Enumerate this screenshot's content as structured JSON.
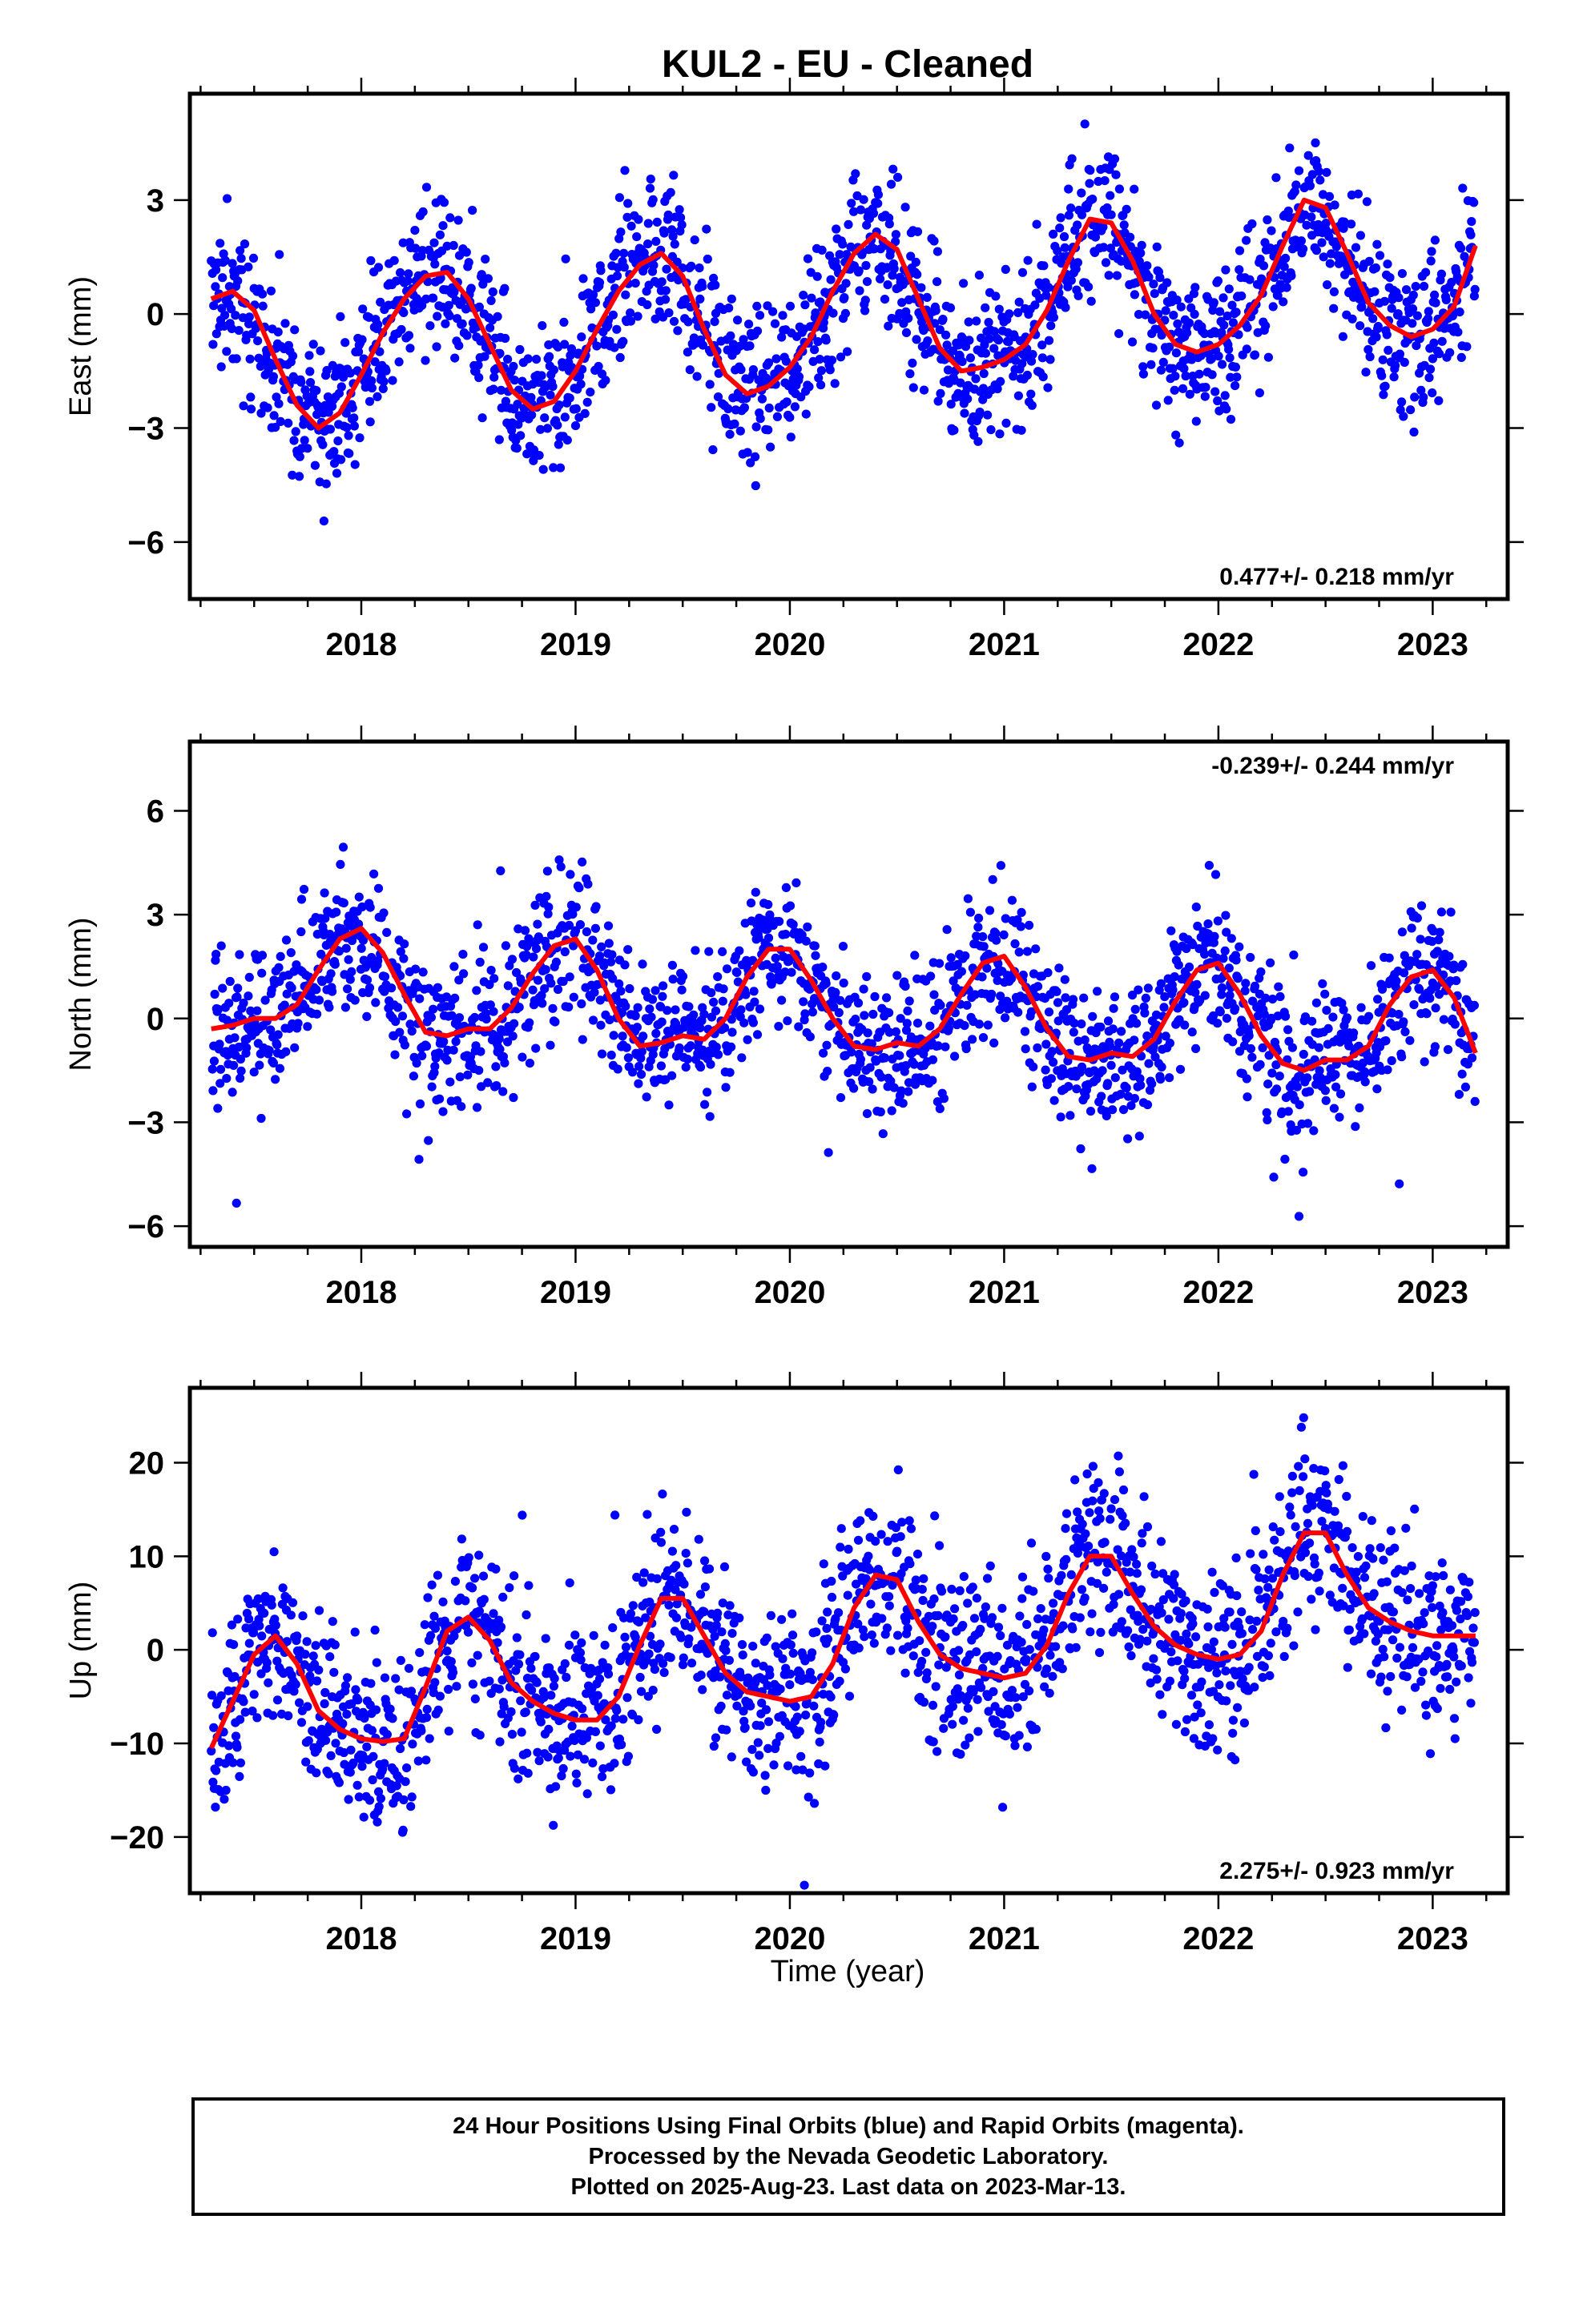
{
  "title": "KUL2  - EU - Cleaned",
  "xlabel": "Time (year)",
  "colors": {
    "points": "#0000ff",
    "fit": "#ff0000",
    "axes": "#000000"
  },
  "notes": [
    "24 Hour Positions Using Final Orbits (blue) and Rapid Orbits (magenta).",
    "Processed by the Nevada Geodetic Laboratory.",
    "Plotted on 2025-Aug-23. Last data on 2023-Mar-13."
  ],
  "chart_data": [
    {
      "type": "scatter",
      "component": "east",
      "ylabel": "East (mm)",
      "xlim": [
        2017.2,
        2023.35
      ],
      "ylim": [
        -7.5,
        5.8
      ],
      "yticks": [
        -6,
        -3,
        0,
        3
      ],
      "ytick_labels": [
        "−6",
        "−3",
        "0",
        "3"
      ],
      "xticks": [
        2018,
        2019,
        2020,
        2021,
        2022,
        2023
      ],
      "xtick_labels": [
        "2018",
        "2019",
        "2020",
        "2021",
        "2022",
        "2023"
      ],
      "velocity_label": "0.477+/- 0.218 mm/yr",
      "velocity_position": "bottom-right",
      "series": [
        {
          "kind": "fit",
          "x": [
            2017.3,
            2017.4,
            2017.5,
            2017.6,
            2017.7,
            2017.8,
            2017.9,
            2018.0,
            2018.1,
            2018.2,
            2018.3,
            2018.4,
            2018.5,
            2018.6,
            2018.7,
            2018.8,
            2018.9,
            2019.0,
            2019.1,
            2019.2,
            2019.3,
            2019.4,
            2019.5,
            2019.6,
            2019.7,
            2019.8,
            2019.9,
            2020.0,
            2020.1,
            2020.2,
            2020.3,
            2020.4,
            2020.5,
            2020.6,
            2020.7,
            2020.8,
            2020.9,
            2021.0,
            2021.1,
            2021.2,
            2021.3,
            2021.4,
            2021.5,
            2021.6,
            2021.7,
            2021.8,
            2021.9,
            2022.0,
            2022.1,
            2022.2,
            2022.3,
            2022.4,
            2022.5,
            2022.6,
            2022.7,
            2022.8,
            2022.9,
            2023.0,
            2023.1,
            2023.2
          ],
          "y": [
            0.4,
            0.6,
            0.1,
            -1.2,
            -2.4,
            -3.0,
            -2.6,
            -1.6,
            -0.5,
            0.4,
            1.0,
            1.1,
            0.4,
            -0.8,
            -2.0,
            -2.5,
            -2.3,
            -1.5,
            -0.4,
            0.6,
            1.3,
            1.6,
            1.0,
            -0.4,
            -1.6,
            -2.1,
            -1.9,
            -1.4,
            -0.6,
            0.6,
            1.6,
            2.1,
            1.7,
            0.4,
            -0.9,
            -1.5,
            -1.4,
            -1.2,
            -0.8,
            0.1,
            1.4,
            2.5,
            2.4,
            1.4,
            0.0,
            -0.8,
            -1.0,
            -0.8,
            -0.3,
            0.5,
            1.8,
            3.0,
            2.8,
            1.6,
            0.3,
            -0.3,
            -0.6,
            -0.4,
            0.2,
            1.8
          ]
        },
        {
          "kind": "daily",
          "seed": 11,
          "amp_scale": 1.0,
          "noise": 1.0
        }
      ]
    },
    {
      "type": "scatter",
      "component": "north",
      "ylabel": "North (mm)",
      "xlim": [
        2017.2,
        2023.35
      ],
      "ylim": [
        -6.6,
        8.0
      ],
      "yticks": [
        -6,
        -3,
        0,
        3,
        6
      ],
      "ytick_labels": [
        "−6",
        "−3",
        "0",
        "3",
        "6"
      ],
      "xticks": [
        2018,
        2019,
        2020,
        2021,
        2022,
        2023
      ],
      "xtick_labels": [
        "2018",
        "2019",
        "2020",
        "2021",
        "2022",
        "2023"
      ],
      "velocity_label": "-0.239+/- 0.244 mm/yr",
      "velocity_position": "top-right",
      "series": [
        {
          "kind": "fit",
          "x": [
            2017.3,
            2017.4,
            2017.5,
            2017.6,
            2017.7,
            2017.8,
            2017.9,
            2018.0,
            2018.1,
            2018.2,
            2018.3,
            2018.4,
            2018.5,
            2018.6,
            2018.7,
            2018.8,
            2018.9,
            2019.0,
            2019.1,
            2019.2,
            2019.3,
            2019.4,
            2019.5,
            2019.6,
            2019.7,
            2019.8,
            2019.9,
            2020.0,
            2020.1,
            2020.2,
            2020.3,
            2020.4,
            2020.5,
            2020.6,
            2020.7,
            2020.8,
            2020.9,
            2021.0,
            2021.1,
            2021.2,
            2021.3,
            2021.4,
            2021.5,
            2021.6,
            2021.7,
            2021.8,
            2021.9,
            2022.0,
            2022.1,
            2022.2,
            2022.3,
            2022.4,
            2022.5,
            2022.6,
            2022.7,
            2022.8,
            2022.9,
            2023.0,
            2023.1,
            2023.2
          ],
          "y": [
            -0.3,
            -0.2,
            0.0,
            0.0,
            0.4,
            1.4,
            2.3,
            2.6,
            1.9,
            0.7,
            -0.4,
            -0.5,
            -0.3,
            -0.3,
            0.3,
            1.3,
            2.1,
            2.3,
            1.4,
            0.0,
            -0.8,
            -0.7,
            -0.5,
            -0.6,
            0.0,
            1.2,
            2.0,
            2.0,
            1.1,
            0.0,
            -0.8,
            -0.9,
            -0.7,
            -0.8,
            -0.3,
            0.7,
            1.6,
            1.8,
            0.9,
            -0.3,
            -1.1,
            -1.2,
            -1.0,
            -1.1,
            -0.6,
            0.5,
            1.4,
            1.6,
            0.7,
            -0.5,
            -1.3,
            -1.5,
            -1.2,
            -1.2,
            -0.8,
            0.4,
            1.2,
            1.4,
            0.6,
            -1.0
          ]
        },
        {
          "kind": "daily",
          "seed": 23,
          "amp_scale": 1.0,
          "noise": 1.05
        }
      ]
    },
    {
      "type": "scatter",
      "component": "up",
      "ylabel": "Up (mm)",
      "xlim": [
        2017.2,
        2023.35
      ],
      "ylim": [
        -26.0,
        28.0
      ],
      "yticks": [
        -20,
        -10,
        0,
        10,
        20
      ],
      "ytick_labels": [
        "−20",
        "−10",
        "0",
        "10",
        "20"
      ],
      "xticks": [
        2018,
        2019,
        2020,
        2021,
        2022,
        2023
      ],
      "xtick_labels": [
        "2018",
        "2019",
        "2020",
        "2021",
        "2022",
        "2023"
      ],
      "velocity_label": "2.275+/- 0.923 mm/yr",
      "velocity_position": "bottom-right",
      "series": [
        {
          "kind": "fit",
          "x": [
            2017.3,
            2017.4,
            2017.5,
            2017.6,
            2017.7,
            2017.8,
            2017.9,
            2018.0,
            2018.1,
            2018.2,
            2018.3,
            2018.4,
            2018.5,
            2018.6,
            2018.7,
            2018.8,
            2018.9,
            2019.0,
            2019.1,
            2019.2,
            2019.3,
            2019.4,
            2019.5,
            2019.6,
            2019.7,
            2019.8,
            2019.9,
            2020.0,
            2020.1,
            2020.2,
            2020.3,
            2020.4,
            2020.5,
            2020.6,
            2020.7,
            2020.8,
            2020.9,
            2021.0,
            2021.1,
            2021.2,
            2021.3,
            2021.4,
            2021.5,
            2021.6,
            2021.7,
            2021.8,
            2021.9,
            2022.0,
            2022.1,
            2022.2,
            2022.3,
            2022.4,
            2022.5,
            2022.6,
            2022.7,
            2022.8,
            2022.9,
            2023.0,
            2023.1,
            2023.2
          ],
          "y": [
            -10.5,
            -5.5,
            -0.5,
            1.5,
            -1.5,
            -6.5,
            -8.5,
            -9.5,
            -9.8,
            -9.5,
            -4.0,
            2.0,
            3.5,
            1.0,
            -3.5,
            -5.5,
            -6.8,
            -7.5,
            -7.5,
            -5.0,
            0.5,
            5.5,
            5.5,
            1.5,
            -2.5,
            -4.5,
            -5.0,
            -5.5,
            -5.0,
            -1.5,
            4.5,
            8.0,
            7.5,
            3.0,
            -0.5,
            -2.0,
            -2.5,
            -3.0,
            -2.5,
            0.5,
            6.0,
            10.0,
            10.0,
            6.0,
            2.5,
            0.5,
            -0.5,
            -1.0,
            -0.5,
            2.0,
            8.0,
            12.5,
            12.5,
            8.0,
            4.5,
            3.0,
            2.0,
            1.5,
            1.5,
            1.5
          ]
        },
        {
          "kind": "daily",
          "seed": 37,
          "amp_scale": 1.0,
          "noise": 4.6
        }
      ]
    }
  ]
}
